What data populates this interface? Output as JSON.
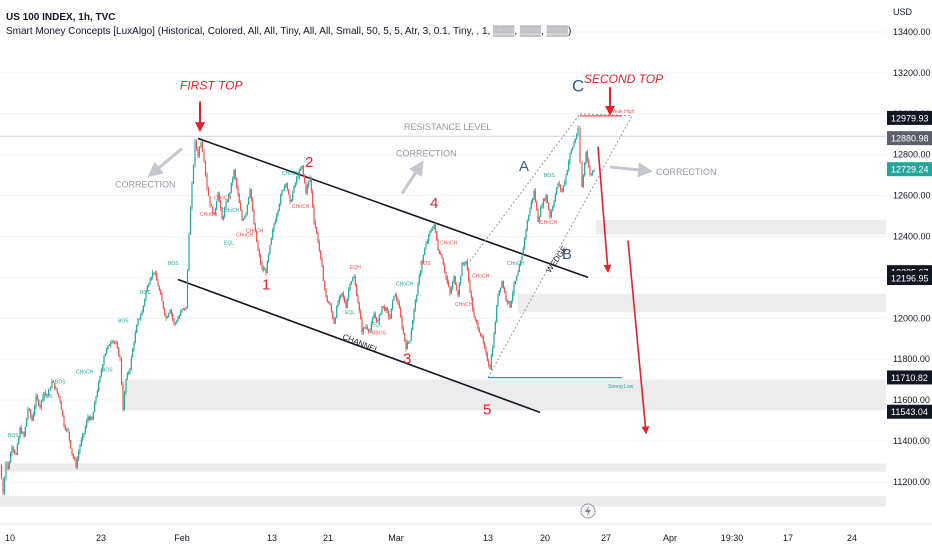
{
  "header": {
    "title": "US 100 INDEX, 1h, TVC",
    "indicator": "Smart Money Concepts [LuxAlgo] (Historical, Colored, All, All, Tiny, All, All, Small, 50, 5, 5, Atr, 3, 0.1, Tiny, , 1, ▒▒▒, ▒▒▒, ▒▒▒)"
  },
  "currency": "USD",
  "colors": {
    "up": "#26a69a",
    "down": "#ef5350",
    "annotation_red": "#e91e2c",
    "annotation_blue": "#3d5a80",
    "zone_fill": "#ececec",
    "grid": "#f0f3fa"
  },
  "chart_data": {
    "type": "candlestick",
    "ylim": [
      11100,
      13500
    ],
    "y_ticks": [
      "13400.00",
      "13200.00",
      "13000.00",
      "12800.00",
      "12600.00",
      "12400.00",
      "12200.00",
      "12000.00",
      "11800.00",
      "11600.00",
      "11400.00",
      "11200.00"
    ],
    "x_ticks": [
      "10",
      "23",
      "Feb",
      "13",
      "21",
      "Mar",
      "13",
      "20",
      "27",
      "Apr",
      "19:30",
      "17",
      "24"
    ],
    "price_tags": [
      {
        "label": "12979.93",
        "value": 12979.93,
        "style": "dark"
      },
      {
        "label": "12880.98",
        "value": 12880.98,
        "style": "gray"
      },
      {
        "label": "12729.24",
        "value": 12729.24,
        "style": "green"
      },
      {
        "label": "12225.67",
        "value": 12225.67,
        "style": "dark"
      },
      {
        "label": "12196.95",
        "value": 12196.95,
        "style": "dark"
      },
      {
        "label": "11710.82",
        "value": 11710.82,
        "style": "dark"
      },
      {
        "label": "11543.04",
        "value": 11543.04,
        "style": "dark"
      }
    ],
    "price_path": [
      [
        0,
        11280
      ],
      [
        3,
        11150
      ],
      [
        6,
        11300
      ],
      [
        8,
        11260
      ],
      [
        12,
        11380
      ],
      [
        16,
        11330
      ],
      [
        20,
        11460
      ],
      [
        24,
        11420
      ],
      [
        28,
        11560
      ],
      [
        32,
        11500
      ],
      [
        36,
        11610
      ],
      [
        40,
        11570
      ],
      [
        44,
        11640
      ],
      [
        47,
        11620
      ],
      [
        52,
        11690
      ],
      [
        56,
        11650
      ],
      [
        60,
        11600
      ],
      [
        64,
        11480
      ],
      [
        68,
        11440
      ],
      [
        72,
        11340
      ],
      [
        76,
        11280
      ],
      [
        80,
        11380
      ],
      [
        84,
        11440
      ],
      [
        88,
        11520
      ],
      [
        92,
        11500
      ],
      [
        96,
        11620
      ],
      [
        100,
        11710
      ],
      [
        104,
        11820
      ],
      [
        108,
        11860
      ],
      [
        112,
        11900
      ],
      [
        116,
        11870
      ],
      [
        120,
        11800
      ],
      [
        123,
        11560
      ],
      [
        126,
        11700
      ],
      [
        130,
        11760
      ],
      [
        134,
        11890
      ],
      [
        138,
        11990
      ],
      [
        142,
        12030
      ],
      [
        146,
        12130
      ],
      [
        150,
        12200
      ],
      [
        154,
        12230
      ],
      [
        158,
        12160
      ],
      [
        162,
        12080
      ],
      [
        166,
        12000
      ],
      [
        170,
        12050
      ],
      [
        174,
        11970
      ],
      [
        178,
        12000
      ],
      [
        182,
        12040
      ],
      [
        186,
        12050
      ],
      [
        189,
        12420
      ],
      [
        192,
        12650
      ],
      [
        195,
        12860
      ],
      [
        198,
        12800
      ],
      [
        201,
        12870
      ],
      [
        204,
        12780
      ],
      [
        207,
        12640
      ],
      [
        210,
        12560
      ],
      [
        214,
        12500
      ],
      [
        218,
        12620
      ],
      [
        222,
        12480
      ],
      [
        226,
        12560
      ],
      [
        230,
        12620
      ],
      [
        234,
        12720
      ],
      [
        238,
        12600
      ],
      [
        242,
        12480
      ],
      [
        246,
        12520
      ],
      [
        250,
        12640
      ],
      [
        254,
        12460
      ],
      [
        258,
        12330
      ],
      [
        262,
        12240
      ],
      [
        266,
        12230
      ],
      [
        270,
        12350
      ],
      [
        274,
        12460
      ],
      [
        278,
        12540
      ],
      [
        282,
        12620
      ],
      [
        286,
        12670
      ],
      [
        290,
        12560
      ],
      [
        294,
        12640
      ],
      [
        298,
        12700
      ],
      [
        302,
        12740
      ],
      [
        306,
        12620
      ],
      [
        310,
        12690
      ],
      [
        314,
        12480
      ],
      [
        318,
        12380
      ],
      [
        322,
        12240
      ],
      [
        326,
        12100
      ],
      [
        330,
        12060
      ],
      [
        334,
        11980
      ],
      [
        338,
        12080
      ],
      [
        342,
        12120
      ],
      [
        346,
        12060
      ],
      [
        350,
        12180
      ],
      [
        354,
        12200
      ],
      [
        358,
        12080
      ],
      [
        362,
        11940
      ],
      [
        366,
        11960
      ],
      [
        370,
        11940
      ],
      [
        374,
        12020
      ],
      [
        378,
        11980
      ],
      [
        382,
        12060
      ],
      [
        386,
        12040
      ],
      [
        390,
        12000
      ],
      [
        394,
        12120
      ],
      [
        398,
        12080
      ],
      [
        402,
        11960
      ],
      [
        406,
        11860
      ],
      [
        410,
        11900
      ],
      [
        414,
        12040
      ],
      [
        418,
        12160
      ],
      [
        422,
        12280
      ],
      [
        426,
        12360
      ],
      [
        430,
        12420
      ],
      [
        434,
        12460
      ],
      [
        438,
        12340
      ],
      [
        442,
        12300
      ],
      [
        446,
        12200
      ],
      [
        450,
        12120
      ],
      [
        454,
        12200
      ],
      [
        458,
        12120
      ],
      [
        462,
        12260
      ],
      [
        466,
        12280
      ],
      [
        470,
        12140
      ],
      [
        474,
        12000
      ],
      [
        478,
        11960
      ],
      [
        482,
        11900
      ],
      [
        486,
        11820
      ],
      [
        490,
        11760
      ],
      [
        494,
        11920
      ],
      [
        498,
        12120
      ],
      [
        502,
        12180
      ],
      [
        506,
        12100
      ],
      [
        510,
        12060
      ],
      [
        514,
        12160
      ],
      [
        518,
        12220
      ],
      [
        522,
        12300
      ],
      [
        526,
        12440
      ],
      [
        530,
        12540
      ],
      [
        534,
        12620
      ],
      [
        538,
        12480
      ],
      [
        542,
        12560
      ],
      [
        546,
        12600
      ],
      [
        550,
        12500
      ],
      [
        554,
        12580
      ],
      [
        558,
        12660
      ],
      [
        562,
        12620
      ],
      [
        566,
        12700
      ],
      [
        570,
        12800
      ],
      [
        574,
        12860
      ],
      [
        578,
        12920
      ],
      [
        580,
        12760
      ],
      [
        582,
        12640
      ],
      [
        586,
        12820
      ],
      [
        590,
        12700
      ],
      [
        594,
        12729
      ]
    ],
    "zones": [
      {
        "x1": 596,
        "x2": 886,
        "y1": 12480,
        "y2": 12410
      },
      {
        "x1": 518,
        "x2": 886,
        "y1": 12120,
        "y2": 12030
      },
      {
        "x1": 122,
        "x2": 886,
        "y1": 11700,
        "y2": 11550
      },
      {
        "x1": 0,
        "x2": 886,
        "y1": 11290,
        "y2": 11250
      },
      {
        "x1": 0,
        "x2": 886,
        "y1": 11130,
        "y2": 11080
      }
    ],
    "lines": [
      {
        "name": "channel-upper-line",
        "x1": 198,
        "y1": 12880,
        "x2": 588,
        "y2": 12200,
        "color": "#131722",
        "width": 1.6,
        "dash": ""
      },
      {
        "name": "channel-lower-line",
        "x1": 178,
        "y1": 12190,
        "x2": 540,
        "y2": 11540,
        "color": "#131722",
        "width": 1.6,
        "dash": ""
      },
      {
        "name": "resistance-line",
        "x1": 0,
        "y1": 12890,
        "x2": 886,
        "y2": 12890,
        "color": "#cfd2d8",
        "width": 1,
        "dash": ""
      },
      {
        "name": "wedge-upper-line",
        "x1": 470,
        "y1": 12280,
        "x2": 580,
        "y2": 13000,
        "color": "#9598a1",
        "width": 1,
        "dash": "2,2"
      },
      {
        "name": "wedge-lower-line",
        "x1": 488,
        "y1": 11710,
        "x2": 632,
        "y2": 12990,
        "color": "#9598a1",
        "width": 1,
        "dash": "2,2"
      },
      {
        "name": "wedge-top-line",
        "x1": 580,
        "y1": 13000,
        "x2": 632,
        "y2": 12990,
        "color": "#9598a1",
        "width": 1,
        "dash": "2,2"
      },
      {
        "name": "strong-low-line",
        "x1": 488,
        "y1": 11710,
        "x2": 622,
        "y2": 11710,
        "color": "#26a69a",
        "width": 1.2,
        "dash": ""
      },
      {
        "name": "weak-high-line",
        "x1": 580,
        "y1": 12990,
        "x2": 622,
        "y2": 12990,
        "color": "#ef5350",
        "width": 1.2,
        "dash": ""
      }
    ],
    "arrows": [
      {
        "name": "first-top-arrow",
        "x1": 200,
        "y1": 13060,
        "x2": 200,
        "y2": 12920,
        "color": "#e91e2c",
        "width": 2
      },
      {
        "name": "second-top-arrow",
        "x1": 610,
        "y1": 13130,
        "x2": 610,
        "y2": 13000,
        "color": "#e91e2c",
        "width": 2
      },
      {
        "name": "drop-arrow-1",
        "x1": 598,
        "y1": 12840,
        "x2": 608,
        "y2": 12230,
        "color": "#e91e2c",
        "width": 1.6
      },
      {
        "name": "drop-arrow-2",
        "x1": 628,
        "y1": 12380,
        "x2": 646,
        "y2": 11440,
        "color": "#e91e2c",
        "width": 1.6
      },
      {
        "name": "correction-arrow-left",
        "x1": 182,
        "y1": 12830,
        "x2": 150,
        "y2": 12700,
        "color": "#c4c7ce",
        "width": 3
      },
      {
        "name": "correction-arrow-mid",
        "x1": 402,
        "y1": 12610,
        "x2": 422,
        "y2": 12760,
        "color": "#c4c7ce",
        "width": 3
      },
      {
        "name": "correction-arrow-right",
        "x1": 610,
        "y1": 12740,
        "x2": 650,
        "y2": 12720,
        "color": "#c4c7ce",
        "width": 3
      }
    ],
    "annotations": [
      {
        "text": "FIRST TOP",
        "x": 180,
        "y": 13120,
        "color": "#e91e2c",
        "size": 12,
        "italic": true
      },
      {
        "text": "SECOND TOP",
        "x": 584,
        "y": 13150,
        "color": "#e91e2c",
        "size": 12,
        "italic": true
      },
      {
        "text": "C",
        "x": 572,
        "y": 13110,
        "color": "#3d5a80",
        "size": 17
      },
      {
        "text": "A",
        "x": 519,
        "y": 12720,
        "color": "#3d5a80",
        "size": 15
      },
      {
        "text": "B",
        "x": 562,
        "y": 12290,
        "color": "#3d5a80",
        "size": 15
      },
      {
        "text": "1",
        "x": 262,
        "y": 12140,
        "color": "#e91e2c",
        "size": 15
      },
      {
        "text": "2",
        "x": 305,
        "y": 12740,
        "color": "#e91e2c",
        "size": 15
      },
      {
        "text": "3",
        "x": 403,
        "y": 11780,
        "color": "#e91e2c",
        "size": 15
      },
      {
        "text": "4",
        "x": 430,
        "y": 12540,
        "color": "#e91e2c",
        "size": 15
      },
      {
        "text": "5",
        "x": 483,
        "y": 11530,
        "color": "#e91e2c",
        "size": 15
      },
      {
        "text": "CORRECTION",
        "x": 115,
        "y": 12640,
        "color": "#9598a1",
        "size": 9
      },
      {
        "text": "CORRECTION",
        "x": 396,
        "y": 12790,
        "color": "#9598a1",
        "size": 9
      },
      {
        "text": "CORRECTION",
        "x": 656,
        "y": 12700,
        "color": "#9598a1",
        "size": 9
      },
      {
        "text": "RESISTANCE LEVEL",
        "x": 404,
        "y": 12920,
        "color": "#9598a1",
        "size": 9
      },
      {
        "text": "CHANNEL",
        "x": 342,
        "y": 11900,
        "color": "#131722",
        "size": 8,
        "rotate": 22
      },
      {
        "text": "WEDGE",
        "x": 550,
        "y": 12220,
        "color": "#131722",
        "size": 8,
        "rotate": -55
      },
      {
        "text": "Weak High",
        "x": 610,
        "y": 13005,
        "color": "#ef5350",
        "size": 5
      },
      {
        "text": "Strong Low",
        "x": 608,
        "y": 11660,
        "color": "#26a69a",
        "size": 5
      }
    ],
    "smc_labels": [
      {
        "text": "BOS",
        "x": 8,
        "y": 11420,
        "c": "up"
      },
      {
        "text": "BOS",
        "x": 42,
        "y": 11610,
        "c": "up"
      },
      {
        "text": "BOS",
        "x": 55,
        "y": 11680,
        "c": "up"
      },
      {
        "text": "CHoCH",
        "x": 76,
        "y": 11730,
        "c": "up"
      },
      {
        "text": "BOS",
        "x": 102,
        "y": 11740,
        "c": "up"
      },
      {
        "text": "BOS",
        "x": 118,
        "y": 11980,
        "c": "up"
      },
      {
        "text": "BOS",
        "x": 140,
        "y": 12120,
        "c": "up"
      },
      {
        "text": "BOS",
        "x": 168,
        "y": 12260,
        "c": "up"
      },
      {
        "text": "CHoCH",
        "x": 214,
        "y": 12580,
        "c": "down"
      },
      {
        "text": "CHoCH",
        "x": 222,
        "y": 12520,
        "c": "up"
      },
      {
        "text": "CHoCH",
        "x": 200,
        "y": 12500,
        "c": "down"
      },
      {
        "text": "CHoCH",
        "x": 236,
        "y": 12400,
        "c": "down"
      },
      {
        "text": "EQL",
        "x": 224,
        "y": 12360,
        "c": "up"
      },
      {
        "text": "CHoCH",
        "x": 282,
        "y": 12700,
        "c": "up"
      },
      {
        "text": "CHoCH",
        "x": 292,
        "y": 12540,
        "c": "down"
      },
      {
        "text": "CHoCH",
        "x": 246,
        "y": 12420,
        "c": "down"
      },
      {
        "text": "EQH",
        "x": 350,
        "y": 12240,
        "c": "down"
      },
      {
        "text": "CHoCH",
        "x": 396,
        "y": 12160,
        "c": "up"
      },
      {
        "text": "EQL",
        "x": 345,
        "y": 12020,
        "c": "up"
      },
      {
        "text": "EQL",
        "x": 372,
        "y": 11960,
        "c": "up"
      },
      {
        "text": "BBOS",
        "x": 372,
        "y": 11920,
        "c": "down"
      },
      {
        "text": "CHoCH",
        "x": 440,
        "y": 12360,
        "c": "down"
      },
      {
        "text": "BOS",
        "x": 420,
        "y": 12260,
        "c": "down"
      },
      {
        "text": "CHoCH",
        "x": 455,
        "y": 12060,
        "c": "down"
      },
      {
        "text": "CHoCH",
        "x": 472,
        "y": 12200,
        "c": "down"
      },
      {
        "text": "CHoCH",
        "x": 507,
        "y": 12260,
        "c": "up"
      },
      {
        "text": "BOS",
        "x": 544,
        "y": 12690,
        "c": "up"
      },
      {
        "text": "CHoCH",
        "x": 540,
        "y": 12460,
        "c": "down"
      }
    ]
  }
}
